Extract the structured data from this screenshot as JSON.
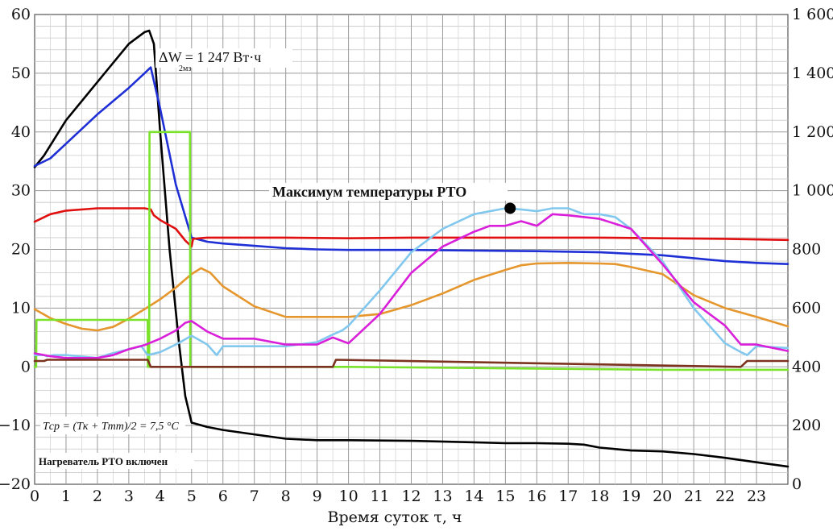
{
  "chart_data": {
    "type": "line",
    "xlabel": "Время суток τ, ч",
    "x_ticks": [
      "0",
      "1",
      "2",
      "3",
      "4",
      "5",
      "6",
      "7",
      "8",
      "9",
      "10",
      "11",
      "12",
      "13",
      "14",
      "15",
      "16",
      "17",
      "18",
      "19",
      "20",
      "21",
      "22",
      "23"
    ],
    "xlim": [
      0,
      24
    ],
    "y_left_ticks": [
      "60",
      "50",
      "40",
      "30",
      "20",
      "10",
      "0",
      "−10",
      "−20"
    ],
    "ylim_left": [
      -20,
      60
    ],
    "y_right_ticks": [
      "1 600",
      "1 400",
      "1 200",
      "1 000",
      "800",
      "600",
      "400",
      "200",
      "0"
    ],
    "ylim_right": [
      0,
      1600
    ],
    "grid": true,
    "annotations": {
      "energy": "ΔW = 1 247 Вт·ч",
      "energy_subscript": "2мз",
      "max_label": "Максимум температуры РТО",
      "formula": "Tср = (Tк + Tтт)/2 = 7,5 °C",
      "heater": "Нагреватель РТО включен"
    },
    "max_marker": {
      "x": 15.15,
      "y": 27.0
    },
    "series": [
      {
        "color": "#000000",
        "axis": "right",
        "x": [
          0,
          0.3,
          1,
          2,
          3,
          3.5,
          3.65,
          3.8,
          4,
          4.3,
          4.6,
          4.8,
          5,
          5.5,
          6,
          7,
          8,
          9,
          10,
          12,
          14,
          15,
          16,
          17,
          17.5,
          18,
          18.5,
          19,
          20,
          21,
          22,
          23,
          24
        ],
        "y": [
          1080,
          1120,
          1240,
          1370,
          1500,
          1540,
          1545,
          1500,
          1200,
          800,
          480,
          300,
          210,
          195,
          185,
          170,
          155,
          150,
          150,
          148,
          143,
          140,
          140,
          138,
          135,
          125,
          120,
          115,
          112,
          103,
          90,
          75,
          60
        ]
      },
      {
        "color": "#1f2fd6",
        "axis": "left",
        "x": [
          0,
          0.5,
          1,
          2,
          3,
          3.5,
          3.7,
          4,
          4.5,
          5,
          5.5,
          6,
          7,
          8,
          9,
          10,
          12,
          14,
          16,
          18,
          20,
          21,
          22,
          23,
          24
        ],
        "y": [
          34.2,
          35.5,
          38,
          43,
          47.5,
          50,
          51,
          44,
          31,
          22,
          21.3,
          21,
          20.6,
          20.2,
          20,
          19.9,
          19.9,
          19.8,
          19.7,
          19.5,
          19,
          18.5,
          18,
          17.7,
          17.5
        ]
      },
      {
        "color": "#e01010",
        "axis": "left",
        "x": [
          0,
          0.5,
          1,
          2,
          3,
          3.5,
          3.7,
          3.8,
          4,
          4.5,
          4.8,
          5,
          5.05,
          5.5,
          6,
          8,
          10,
          12,
          14,
          16,
          18,
          20,
          22,
          24
        ],
        "y": [
          24.7,
          26,
          26.6,
          27,
          27,
          27,
          26.8,
          25.8,
          25,
          23.5,
          21.5,
          20.5,
          21.8,
          22,
          22,
          22,
          21.9,
          22,
          22,
          22,
          22,
          21.9,
          21.8,
          21.6
        ]
      },
      {
        "color": "#e5962c",
        "axis": "left",
        "x": [
          0,
          0.5,
          1,
          1.5,
          2,
          2.5,
          3,
          3.5,
          4,
          4.5,
          5,
          5.3,
          5.6,
          6,
          7,
          8,
          9,
          10,
          11,
          12,
          13,
          14,
          15,
          15.5,
          16,
          17,
          18,
          18.5,
          19,
          20,
          21,
          22,
          23,
          24
        ],
        "y": [
          9.8,
          8.3,
          7.3,
          6.5,
          6.2,
          6.8,
          8.2,
          9.8,
          11.5,
          13.5,
          15.8,
          16.8,
          16,
          13.7,
          10.3,
          8.5,
          8.5,
          8.5,
          9,
          10.5,
          12.5,
          14.8,
          16.5,
          17.3,
          17.6,
          17.7,
          17.6,
          17.5,
          17,
          15.8,
          12.2,
          10,
          8.5,
          6.9
        ]
      },
      {
        "color": "#7ae22a",
        "axis": "left",
        "x": [
          0,
          0.05,
          0.06,
          3.5,
          3.6,
          3.61,
          3.65,
          3.66,
          3.7,
          3.71,
          4.95,
          4.96,
          5.05,
          5.06,
          10,
          20,
          24
        ],
        "y": [
          0,
          0,
          8,
          8,
          8,
          0,
          0,
          40,
          40,
          40,
          40,
          0,
          0,
          0,
          0,
          -0.5,
          -0.5
        ]
      },
      {
        "color": "#82c8ee",
        "axis": "left",
        "x": [
          0,
          0.3,
          0.4,
          0.6,
          1,
          2,
          2.4,
          3,
          3.4,
          3.6,
          4,
          4.5,
          5,
          5.5,
          5.8,
          6,
          7,
          8,
          9,
          9.5,
          9.8,
          10,
          11,
          12,
          13,
          14,
          15,
          15.5,
          16,
          16.5,
          17,
          17.5,
          18,
          18.5,
          19,
          20,
          21,
          22,
          22.5,
          22.7,
          23,
          24
        ],
        "y": [
          2,
          2,
          1.8,
          2,
          2,
          1.5,
          2.2,
          3,
          3.5,
          2,
          2.5,
          3.8,
          5.3,
          3.8,
          2,
          3.5,
          3.5,
          3.5,
          4.2,
          5.5,
          6.2,
          7,
          13,
          19.5,
          23.5,
          26,
          27,
          26.8,
          26.5,
          27,
          27,
          26,
          26,
          25.5,
          23.5,
          18,
          10,
          4,
          2.5,
          2,
          3.5,
          3.2
        ]
      },
      {
        "color": "#da1fda",
        "axis": "left",
        "x": [
          0,
          0.5,
          1,
          1.5,
          2,
          2.5,
          3,
          3.5,
          4,
          4.5,
          4.8,
          5,
          5.5,
          6,
          7,
          8,
          9,
          9.5,
          10,
          11,
          12,
          13,
          14,
          14.5,
          15,
          15.5,
          16,
          16.5,
          17,
          18,
          19,
          20,
          21,
          22,
          22.5,
          23,
          24
        ],
        "y": [
          2.3,
          1.8,
          1.5,
          1.5,
          1.5,
          2,
          3,
          3.7,
          4.8,
          6.2,
          7.5,
          7.8,
          6,
          4.8,
          4.8,
          3.8,
          3.8,
          5,
          4,
          9,
          16,
          20.5,
          23,
          24,
          24,
          24.8,
          24,
          26,
          25.8,
          25.2,
          23.5,
          17.5,
          11,
          7,
          3.8,
          3.8,
          2.7
        ]
      },
      {
        "color": "#7b3320",
        "axis": "left",
        "x": [
          0,
          0.3,
          0.4,
          2,
          3.6,
          3.7,
          9.5,
          9.6,
          22.5,
          22.7,
          24
        ],
        "y": [
          1,
          1,
          1.2,
          1.2,
          1.2,
          0,
          0,
          1.2,
          0,
          1,
          1
        ]
      }
    ]
  }
}
